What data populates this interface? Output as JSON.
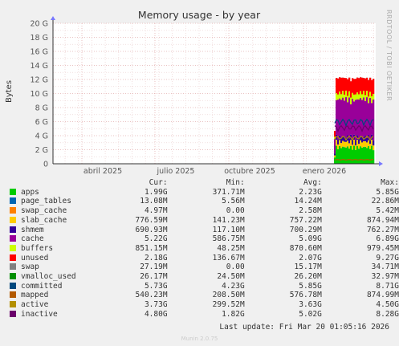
{
  "side_label": "RRDTOOL / TOBI OETIKER",
  "footer": {
    "last_update": "Last update: Fri Mar 20 01:05:16 2026",
    "version": "Munin 2.0.75"
  },
  "legend_headers": {
    "cur": "Cur:",
    "min": "Min:",
    "avg": "Avg:",
    "max": "Max:"
  },
  "chart_data": {
    "type": "area",
    "title": "Memory usage - by year",
    "ylabel": "Bytes",
    "ylim": [
      0,
      20
    ],
    "y_unit": "G",
    "y_ticks": [
      "0",
      "2 G",
      "4 G",
      "6 G",
      "8 G",
      "10 G",
      "12 G",
      "14 G",
      "16 G",
      "18 G",
      "20 G"
    ],
    "x_ticks": [
      "abril 2025",
      "julio 2025",
      "octubre 2025",
      "enero 2026"
    ],
    "grid": true,
    "legend_position": "bottom",
    "series": [
      {
        "name": "apps",
        "color": "#00cc00",
        "cur": "1.99G",
        "min": "371.71M",
        "avg": "2.23G",
        "max": "5.85G"
      },
      {
        "name": "page_tables",
        "color": "#0066b3",
        "cur": "13.08M",
        "min": "5.56M",
        "avg": "14.24M",
        "max": "22.86M"
      },
      {
        "name": "swap_cache",
        "color": "#ff8000",
        "cur": "4.97M",
        "min": "0.00",
        "avg": "2.58M",
        "max": "5.42M"
      },
      {
        "name": "slab_cache",
        "color": "#ffcc00",
        "cur": "776.59M",
        "min": "141.23M",
        "avg": "757.22M",
        "max": "874.94M"
      },
      {
        "name": "shmem",
        "color": "#330099",
        "cur": "690.93M",
        "min": "117.10M",
        "avg": "700.29M",
        "max": "762.27M"
      },
      {
        "name": "cache",
        "color": "#990099",
        "cur": "5.22G",
        "min": "586.75M",
        "avg": "5.09G",
        "max": "6.89G"
      },
      {
        "name": "buffers",
        "color": "#ccff00",
        "cur": "851.15M",
        "min": "48.25M",
        "avg": "870.60M",
        "max": "979.45M"
      },
      {
        "name": "unused",
        "color": "#ff0000",
        "cur": "2.18G",
        "min": "136.67M",
        "avg": "2.07G",
        "max": "9.27G"
      },
      {
        "name": "swap",
        "color": "#808080",
        "cur": "27.19M",
        "min": "0.00",
        "avg": "15.17M",
        "max": "34.71M"
      },
      {
        "name": "vmalloc_used",
        "color": "#008f00",
        "cur": "26.17M",
        "min": "24.50M",
        "avg": "26.20M",
        "max": "32.97M"
      },
      {
        "name": "committed",
        "color": "#00487d",
        "cur": "5.73G",
        "min": "4.23G",
        "avg": "5.85G",
        "max": "8.71G"
      },
      {
        "name": "mapped",
        "color": "#b35a00",
        "cur": "540.23M",
        "min": "208.50M",
        "avg": "576.78M",
        "max": "874.99M"
      },
      {
        "name": "active",
        "color": "#b38f00",
        "cur": "3.73G",
        "min": "299.52M",
        "avg": "3.63G",
        "max": "4.50G"
      },
      {
        "name": "inactive",
        "color": "#6b006b",
        "cur": "4.80G",
        "min": "1.82G",
        "avg": "5.02G",
        "max": "8.28G"
      }
    ]
  }
}
